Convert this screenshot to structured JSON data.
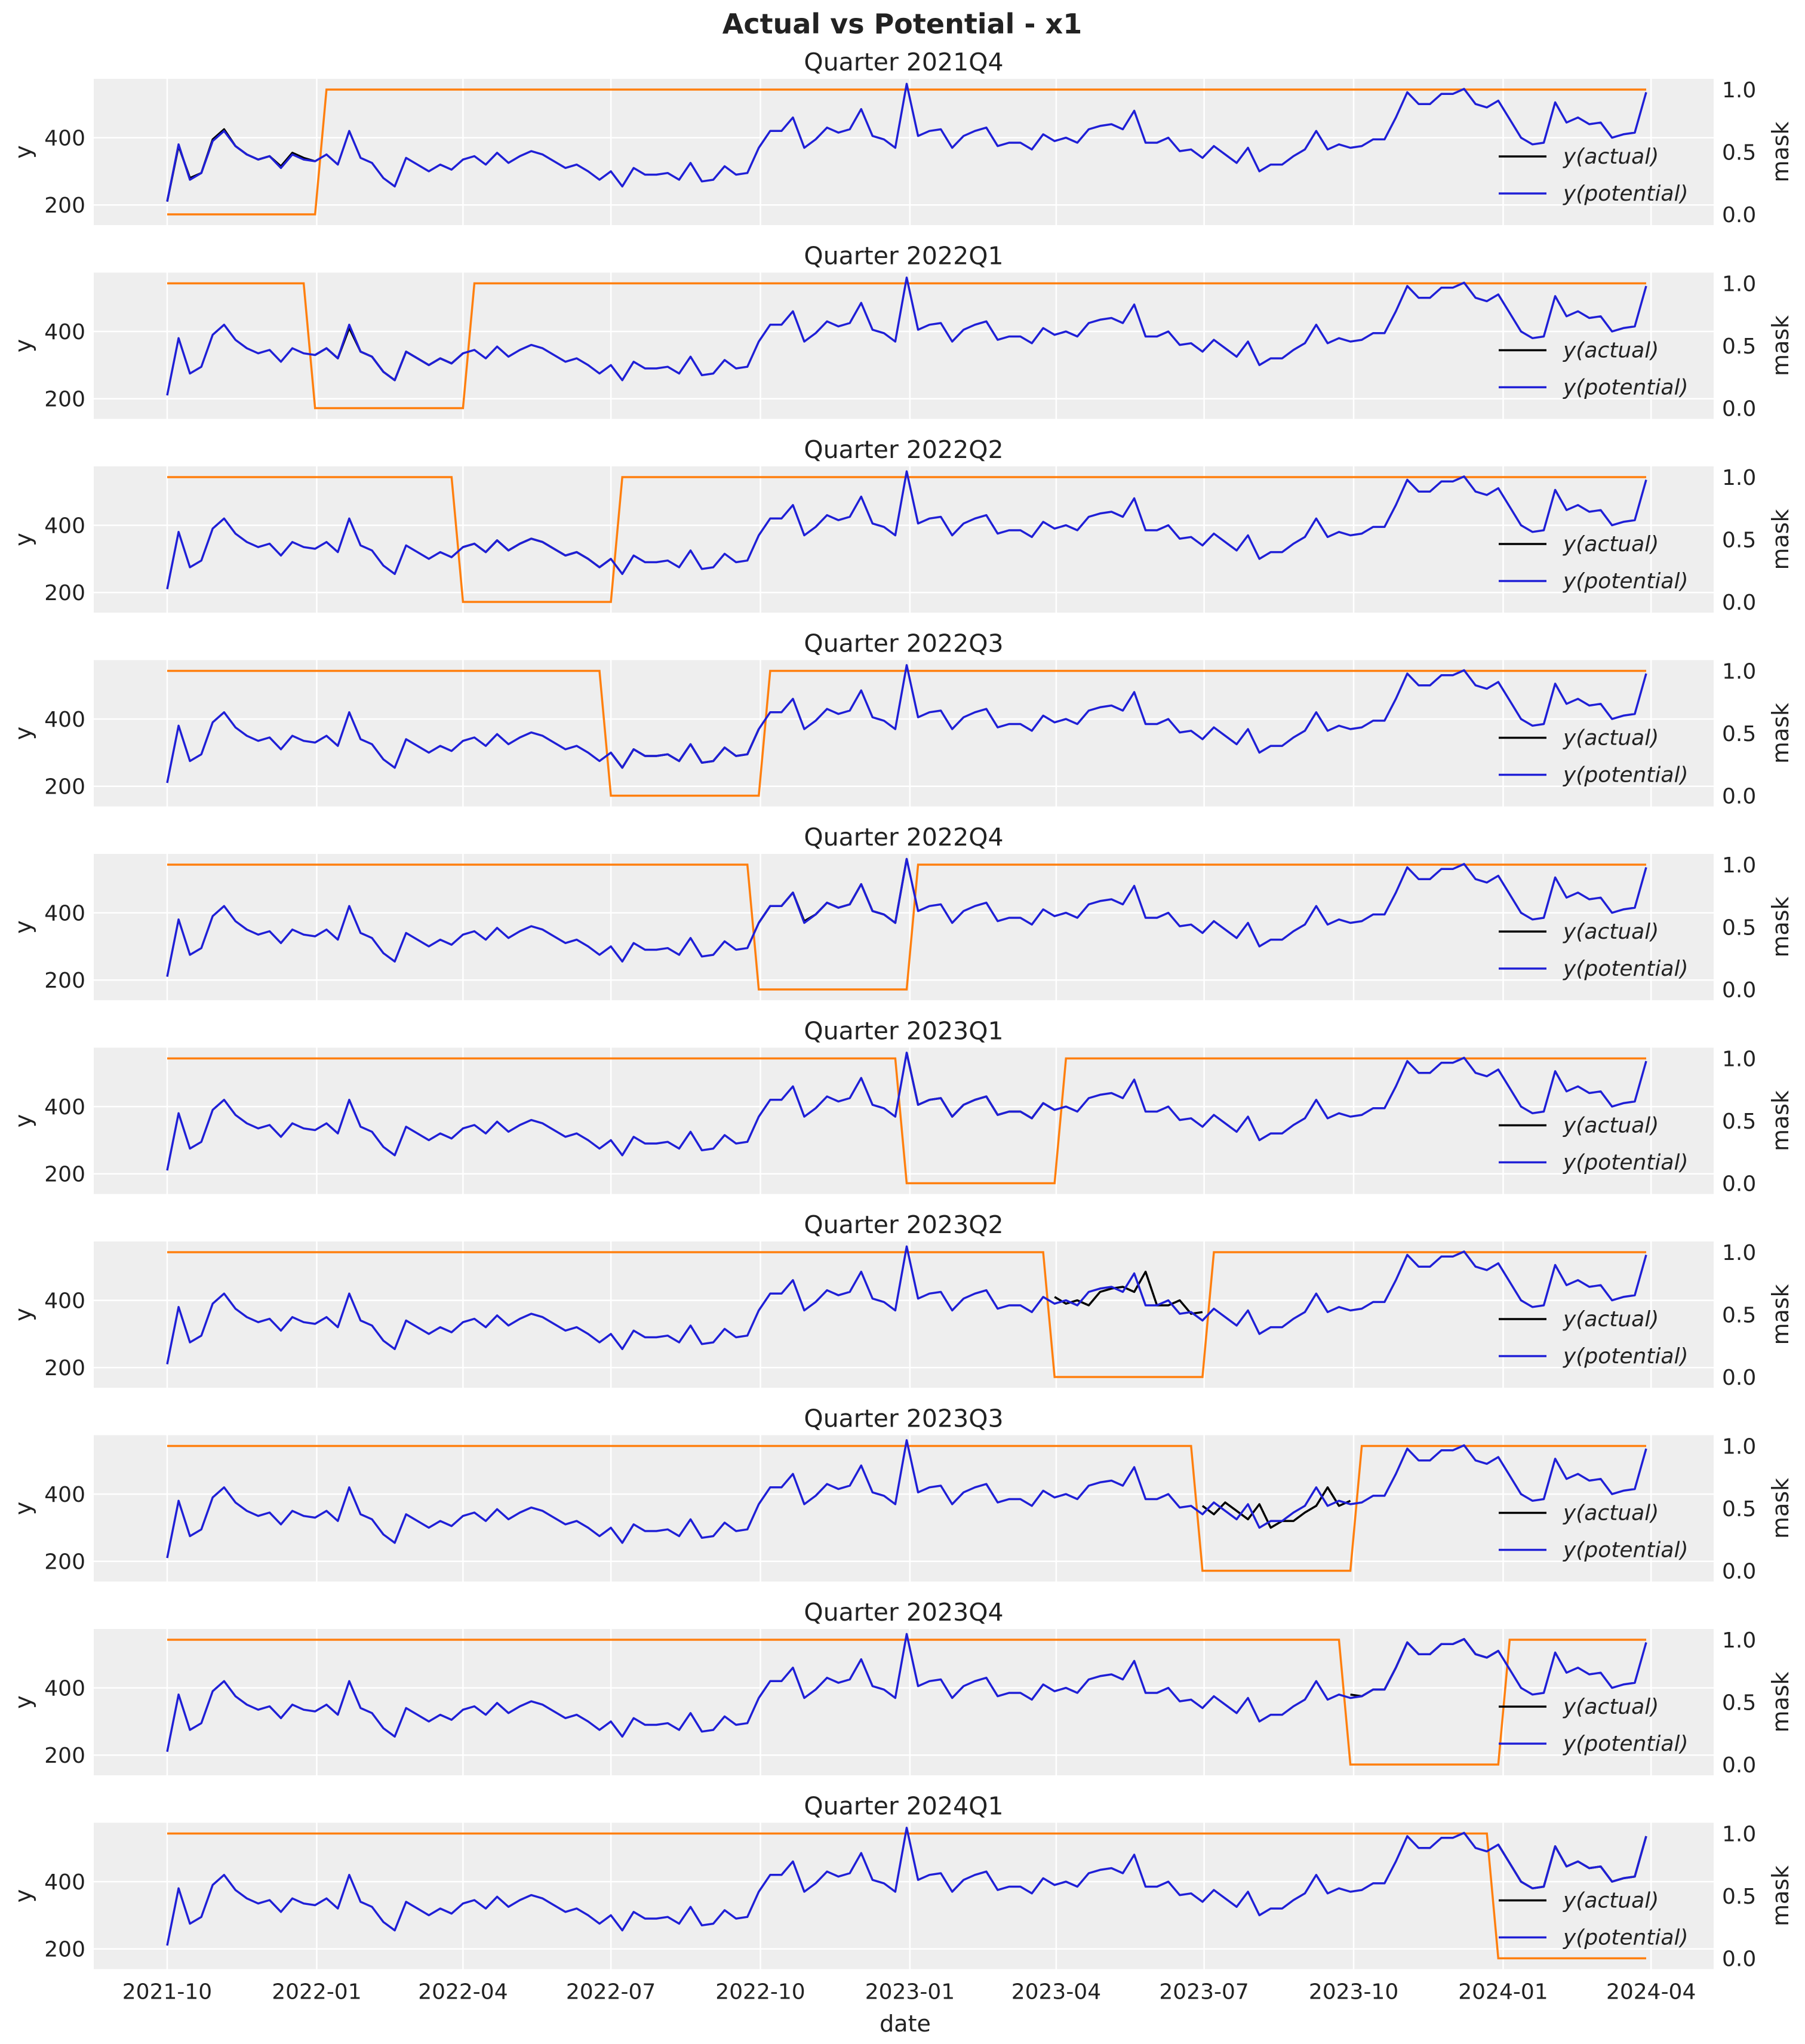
{
  "chart_data": {
    "type": "line",
    "title": "Actual vs Potential - x1",
    "xlabel": "date",
    "ylabel": "y",
    "ylabel_right": "mask",
    "x_ticks": [
      "2021-10",
      "2022-01",
      "2022-04",
      "2022-07",
      "2022-10",
      "2023-01",
      "2023-04",
      "2023-07",
      "2023-10",
      "2024-01",
      "2024-04"
    ],
    "y_ticks": [
      "200",
      "400"
    ],
    "y_ticks_right": [
      "0.0",
      "0.5",
      "1.0"
    ],
    "ylim": [
      140,
      575
    ],
    "ylim_right": [
      0,
      1
    ],
    "grid": true,
    "legend_placement": "lower-right",
    "legend": [
      "y(actual)",
      "y(potential)"
    ],
    "colors": {
      "actual": "#000000",
      "potential": "#1f1fd6",
      "mask": "#ff7f0e",
      "axes_bg": "#eeeeee"
    },
    "x_start": "2021-10-01",
    "x_step_days": 7,
    "potential": [
      210,
      380,
      275,
      295,
      390,
      420,
      375,
      350,
      335,
      345,
      310,
      350,
      335,
      330,
      350,
      320,
      420,
      340,
      325,
      280,
      255,
      340,
      320,
      300,
      320,
      305,
      335,
      345,
      320,
      355,
      325,
      345,
      360,
      350,
      330,
      310,
      320,
      300,
      275,
      300,
      255,
      310,
      290,
      290,
      295,
      275,
      325,
      270,
      275,
      315,
      290,
      295,
      370,
      420,
      420,
      460,
      370,
      395,
      430,
      415,
      425,
      485,
      405,
      395,
      370,
      560,
      405,
      420,
      425,
      370,
      405,
      420,
      430,
      375,
      385,
      385,
      365,
      410,
      390,
      400,
      385,
      425,
      435,
      440,
      425,
      480,
      385,
      385,
      400,
      360,
      365,
      340,
      375,
      350,
      325,
      370,
      300,
      320,
      320,
      345,
      365,
      420,
      365,
      380,
      370,
      375,
      395,
      395,
      460,
      535,
      500,
      500,
      530,
      530,
      545,
      500,
      490,
      510,
      455,
      400,
      380,
      385,
      505,
      445,
      460,
      440,
      445,
      400,
      410,
      415,
      535
    ],
    "panels": [
      {
        "title": "Quarter 2021Q4",
        "mask_start": 0,
        "mask_end": 13,
        "actual": [
          210,
          375,
          280,
          295,
          395,
          425,
          375,
          350,
          335,
          345,
          315,
          355,
          340,
          330
        ]
      },
      {
        "title": "Quarter 2022Q1",
        "mask_start": 13,
        "mask_end": 26,
        "actual": [
          330,
          350,
          320,
          410,
          340,
          325,
          280,
          255,
          340,
          320,
          300,
          320,
          305,
          335
        ]
      },
      {
        "title": "Quarter 2022Q2",
        "mask_start": 26,
        "mask_end": 39,
        "actual": [
          335,
          345,
          320,
          355,
          325,
          345,
          360,
          350,
          330,
          310,
          320,
          300,
          275,
          300
        ]
      },
      {
        "title": "Quarter 2022Q3",
        "mask_start": 39,
        "mask_end": 52,
        "actual": [
          300,
          255,
          310,
          290,
          290,
          295,
          275,
          325,
          270,
          275,
          315,
          290,
          295,
          370
        ]
      },
      {
        "title": "Quarter 2022Q4",
        "mask_start": 52,
        "mask_end": 65,
        "actual": [
          370,
          420,
          420,
          460,
          375,
          395,
          430,
          415,
          425,
          485,
          405,
          395,
          370,
          560
        ]
      },
      {
        "title": "Quarter 2023Q1",
        "mask_start": 65,
        "mask_end": 78,
        "actual": [
          560,
          405,
          420,
          425,
          370,
          405,
          420,
          430,
          375,
          385,
          385,
          365,
          410,
          390
        ]
      },
      {
        "title": "Quarter 2023Q2",
        "mask_start": 78,
        "mask_end": 91,
        "actual": [
          410,
          390,
          400,
          385,
          425,
          435,
          440,
          425,
          485,
          385,
          385,
          400,
          360,
          365
        ]
      },
      {
        "title": "Quarter 2023Q3",
        "mask_start": 91,
        "mask_end": 104,
        "actual": [
          365,
          340,
          375,
          350,
          325,
          370,
          300,
          320,
          320,
          345,
          365,
          420,
          365,
          380
        ]
      },
      {
        "title": "Quarter 2023Q4",
        "mask_start": 104,
        "mask_end": 117,
        "actual": [
          380,
          375,
          395,
          395,
          460,
          535,
          500,
          500,
          530,
          530,
          545,
          500,
          490,
          510
        ]
      },
      {
        "title": "Quarter 2024Q1",
        "mask_start": 117,
        "mask_end": 130,
        "actual": [
          510,
          455,
          400,
          380,
          385,
          505,
          445,
          460,
          440,
          445,
          400,
          410,
          415,
          535
        ]
      }
    ]
  }
}
